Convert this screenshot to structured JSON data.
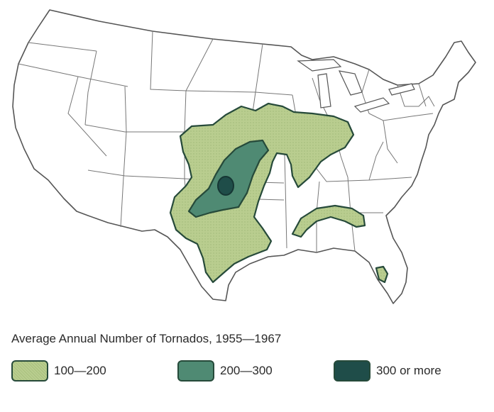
{
  "legend": {
    "title": "Average Annual Number of Tornados, 1955—1967",
    "items": [
      {
        "label": "100—200",
        "color": "#b9cd8f",
        "icon": "light-green-swatch"
      },
      {
        "label": "200—300",
        "color": "#4f8a73",
        "icon": "medium-green-swatch"
      },
      {
        "label": "300 or more",
        "color": "#1f4d49",
        "icon": "dark-green-swatch"
      }
    ]
  },
  "colors": {
    "land": "#ffffff",
    "borders": "#555555",
    "zone_outline": "#264a3a"
  }
}
